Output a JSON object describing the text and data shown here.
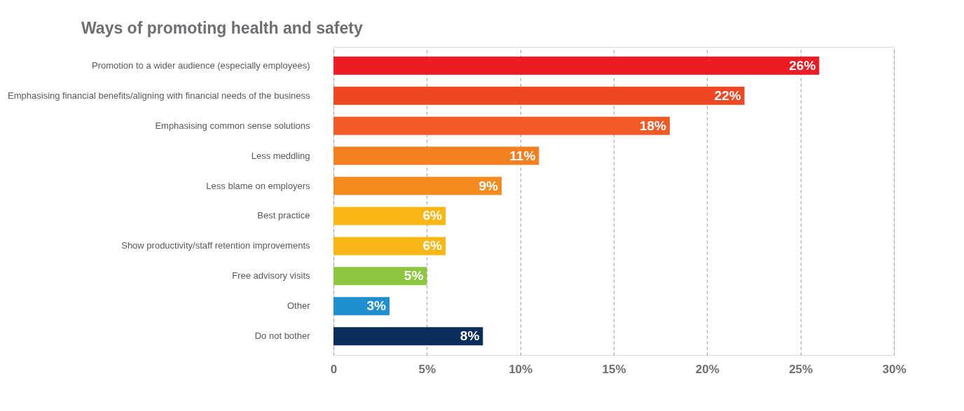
{
  "chart_data": {
    "type": "bar",
    "orientation": "horizontal",
    "title": "Ways of promoting health and safety",
    "categories": [
      "Promotion to a wider audience (especially employees)",
      "Emphasising financial benefits/aligning with financial needs of the business",
      "Emphasising common sense solutions",
      "Less meddling",
      "Less blame on employers",
      "Best practice",
      "Show productivity/staff retention improvements",
      "Free advisory visits",
      "Other",
      "Do not bother"
    ],
    "values": [
      26,
      22,
      18,
      11,
      9,
      6,
      6,
      5,
      3,
      8
    ],
    "colors": [
      "#ed1c24",
      "#ef4623",
      "#f15a24",
      "#f47f20",
      "#f58a1f",
      "#f9b615",
      "#f9b615",
      "#8dc63f",
      "#1f8fd0",
      "#0b2d5c"
    ],
    "xlim": [
      0,
      30
    ],
    "xticks": [
      {
        "value": 0,
        "label": "0"
      },
      {
        "value": 5,
        "label": "5%"
      },
      {
        "value": 10,
        "label": "10%"
      },
      {
        "value": 15,
        "label": "15%"
      },
      {
        "value": 20,
        "label": "20%"
      },
      {
        "value": 25,
        "label": "25%"
      },
      {
        "value": 30,
        "label": "30%"
      }
    ],
    "value_labels": [
      "26%",
      "22%",
      "18%",
      "11%",
      "9%",
      "6%",
      "6%",
      "5%",
      "3%",
      "8%"
    ],
    "grid": "x"
  }
}
